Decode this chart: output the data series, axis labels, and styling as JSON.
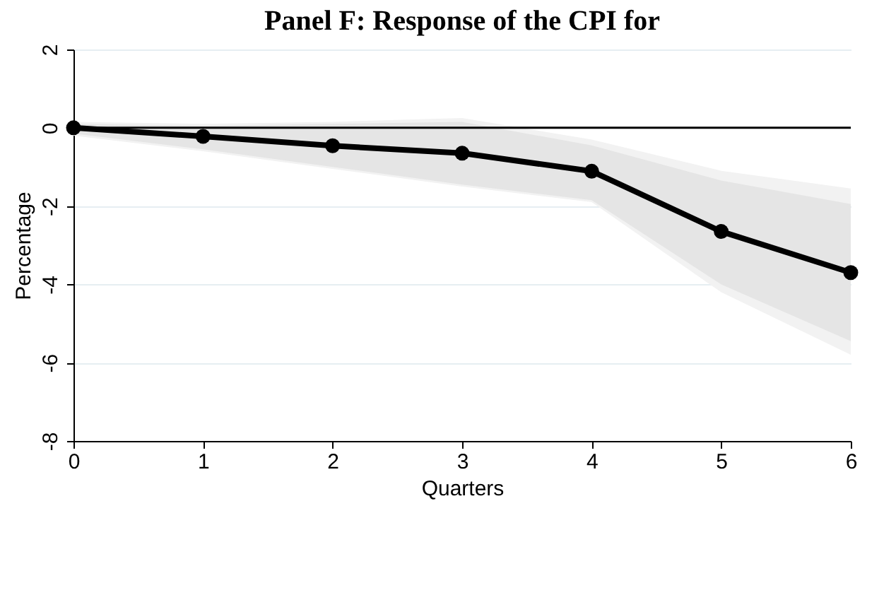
{
  "chart_data": {
    "type": "line",
    "title": "Panel F: Response of the CPI for",
    "xlabel": "Quarters",
    "ylabel": "Percentage",
    "x": [
      0,
      1,
      2,
      3,
      4,
      5,
      6
    ],
    "series": [
      {
        "color": "#000000",
        "values": [
          0,
          -0.22,
          -0.46,
          -0.65,
          -1.11,
          -2.65,
          -3.7
        ],
        "lower": [
          -0.15,
          -0.55,
          -1.0,
          -1.45,
          -1.85,
          -4.0,
          -5.45
        ],
        "upper": [
          0.1,
          0.05,
          0.1,
          0.15,
          -0.45,
          -1.35,
          -1.95
        ]
      },
      {
        "color": "#f2f2f2",
        "values": [
          null,
          null,
          null,
          null,
          null,
          null,
          null
        ],
        "lower": [
          -0.2,
          -0.6,
          -1.05,
          -1.5,
          -1.9,
          -4.2,
          -5.8
        ],
        "upper": [
          0.15,
          0.1,
          0.15,
          0.25,
          -0.3,
          -1.1,
          -1.55
        ]
      }
    ],
    "xlim": [
      0,
      6
    ],
    "xticks": [
      0,
      1,
      2,
      3,
      4,
      5,
      6
    ],
    "ylim": [
      -8,
      2
    ],
    "yticks": [
      -8,
      -6,
      -4,
      -2,
      0,
      2
    ],
    "ref_lines": [
      {
        "axis": "y",
        "value": 0,
        "color": "#000000"
      }
    ],
    "grid": "y",
    "marker": "circle",
    "line_style": "solid"
  }
}
